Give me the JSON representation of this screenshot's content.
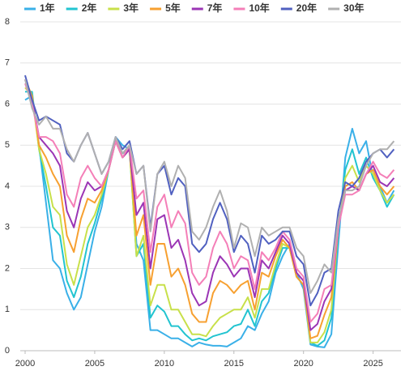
{
  "chart_data": {
    "type": "line",
    "x": [
      2000,
      2000.5,
      2001,
      2001.5,
      2002,
      2002.5,
      2003,
      2003.5,
      2004,
      2004.5,
      2005,
      2005.5,
      2006,
      2006.5,
      2007,
      2007.5,
      2008,
      2008.5,
      2009,
      2009.5,
      2010,
      2010.5,
      2011,
      2011.5,
      2012,
      2012.5,
      2013,
      2013.5,
      2014,
      2014.5,
      2015,
      2015.5,
      2016,
      2016.5,
      2017,
      2017.5,
      2018,
      2018.5,
      2019,
      2019.5,
      2020,
      2020.5,
      2021,
      2021.5,
      2022,
      2022.5,
      2023,
      2023.5,
      2024,
      2024.5,
      2025,
      2025.5,
      2026,
      2026.5
    ],
    "series": [
      {
        "name": "1年",
        "color": "#3ab0e8",
        "values": [
          6.1,
          6.2,
          5.0,
          3.6,
          2.2,
          2.0,
          1.4,
          1.0,
          1.3,
          2.1,
          2.9,
          3.5,
          4.4,
          5.2,
          5.0,
          4.9,
          2.6,
          2.2,
          0.5,
          0.5,
          0.4,
          0.3,
          0.3,
          0.2,
          0.1,
          0.2,
          0.15,
          0.12,
          0.12,
          0.1,
          0.2,
          0.3,
          0.6,
          0.5,
          0.9,
          1.2,
          1.9,
          2.3,
          2.6,
          1.9,
          1.5,
          0.15,
          0.1,
          0.08,
          0.4,
          2.6,
          4.7,
          5.4,
          4.8,
          5.1,
          4.2,
          4.0,
          3.6,
          3.9
        ]
      },
      {
        "name": "2年",
        "color": "#22c4d0",
        "values": [
          6.3,
          6.3,
          4.9,
          4.0,
          3.0,
          2.8,
          1.7,
          1.3,
          1.8,
          2.6,
          3.1,
          3.7,
          4.4,
          5.1,
          4.8,
          4.9,
          2.3,
          2.6,
          0.8,
          1.1,
          0.95,
          0.6,
          0.6,
          0.4,
          0.25,
          0.3,
          0.25,
          0.35,
          0.4,
          0.45,
          0.6,
          0.65,
          1.0,
          0.6,
          1.2,
          1.4,
          2.0,
          2.5,
          2.5,
          1.8,
          1.6,
          0.2,
          0.12,
          0.25,
          0.8,
          2.9,
          4.4,
          4.9,
          4.3,
          4.7,
          4.2,
          3.9,
          3.5,
          3.8
        ]
      },
      {
        "name": "3年",
        "color": "#c8e04a",
        "values": [
          6.4,
          6.2,
          4.9,
          4.3,
          3.5,
          3.3,
          2.1,
          1.6,
          2.3,
          3.0,
          3.3,
          3.8,
          4.4,
          5.1,
          4.7,
          4.9,
          2.3,
          2.8,
          1.1,
          1.6,
          1.6,
          1.0,
          1.0,
          0.7,
          0.4,
          0.4,
          0.35,
          0.6,
          0.8,
          0.9,
          1.0,
          1.0,
          1.3,
          0.8,
          1.5,
          1.5,
          2.1,
          2.6,
          2.5,
          1.8,
          1.6,
          0.2,
          0.2,
          0.45,
          1.0,
          3.0,
          4.2,
          4.5,
          4.1,
          4.5,
          4.3,
          3.9,
          3.6,
          3.8
        ]
      },
      {
        "name": "5年",
        "color": "#f7a030",
        "values": [
          6.6,
          6.2,
          5.0,
          4.7,
          4.3,
          4.0,
          2.8,
          2.4,
          3.2,
          3.7,
          3.6,
          3.9,
          4.4,
          5.1,
          4.7,
          4.9,
          2.8,
          3.3,
          1.6,
          2.6,
          2.6,
          1.8,
          2.0,
          1.6,
          0.9,
          0.7,
          0.7,
          1.4,
          1.7,
          1.6,
          1.4,
          1.6,
          1.7,
          1.0,
          1.9,
          1.8,
          2.3,
          2.7,
          2.5,
          1.8,
          1.6,
          0.3,
          0.36,
          0.87,
          1.3,
          3.0,
          4.0,
          4.1,
          3.9,
          4.3,
          4.4,
          4.0,
          3.8,
          4.0
        ]
      },
      {
        "name": "7年",
        "color": "#9b35b5",
        "values": [
          6.6,
          6.1,
          5.2,
          5.0,
          4.8,
          4.5,
          3.4,
          3.0,
          3.7,
          4.1,
          3.9,
          4.0,
          4.4,
          5.1,
          4.7,
          4.9,
          3.3,
          3.6,
          2.0,
          3.2,
          3.3,
          2.5,
          2.7,
          2.2,
          1.4,
          1.1,
          1.2,
          1.9,
          2.3,
          2.1,
          1.8,
          2.0,
          2.0,
          1.3,
          2.2,
          2.0,
          2.4,
          2.8,
          2.6,
          1.9,
          1.7,
          0.5,
          0.65,
          1.2,
          1.5,
          3.0,
          3.9,
          4.0,
          3.9,
          4.3,
          4.5,
          4.1,
          4.0,
          4.2
        ]
      },
      {
        "name": "10年",
        "color": "#f47fb8",
        "values": [
          6.5,
          6.0,
          5.2,
          5.2,
          5.1,
          4.8,
          3.8,
          3.5,
          4.2,
          4.5,
          4.2,
          4.0,
          4.4,
          5.1,
          4.7,
          5.0,
          3.7,
          3.9,
          2.4,
          3.5,
          3.8,
          3.0,
          3.4,
          3.1,
          1.9,
          1.6,
          1.8,
          2.5,
          2.9,
          2.6,
          2.0,
          2.3,
          2.2,
          1.5,
          2.4,
          2.2,
          2.5,
          2.9,
          2.7,
          2.0,
          1.8,
          0.7,
          0.9,
          1.5,
          1.6,
          3.0,
          3.8,
          3.8,
          3.9,
          4.3,
          4.6,
          4.3,
          4.2,
          4.4
        ]
      },
      {
        "name": "20年",
        "color": "#5060c0",
        "values": [
          6.7,
          6.1,
          5.6,
          5.7,
          5.6,
          5.5,
          4.8,
          4.6,
          5.0,
          5.3,
          4.8,
          4.3,
          4.6,
          5.2,
          4.9,
          5.1,
          4.3,
          4.5,
          3.0,
          4.3,
          4.5,
          3.8,
          4.2,
          4.0,
          2.6,
          2.4,
          2.6,
          3.2,
          3.6,
          3.2,
          2.4,
          2.8,
          2.6,
          1.9,
          2.8,
          2.6,
          2.7,
          2.9,
          2.9,
          2.3,
          2.1,
          1.1,
          1.4,
          1.9,
          2.0,
          3.4,
          4.1,
          4.0,
          4.2,
          4.6,
          4.8,
          4.9,
          4.7,
          4.9
        ]
      },
      {
        "name": "30年",
        "color": "#b0b0b0",
        "values": [
          6.6,
          5.9,
          5.5,
          5.7,
          5.4,
          5.4,
          4.9,
          4.6,
          5.0,
          5.3,
          4.8,
          4.3,
          4.6,
          5.2,
          4.8,
          5.0,
          4.3,
          4.5,
          2.9,
          4.3,
          4.6,
          4.0,
          4.5,
          4.2,
          2.9,
          2.7,
          3.0,
          3.5,
          3.9,
          3.4,
          2.5,
          3.1,
          3.0,
          2.3,
          3.0,
          2.8,
          2.9,
          3.0,
          3.0,
          2.5,
          2.3,
          1.4,
          1.7,
          2.1,
          1.9,
          3.2,
          3.9,
          3.9,
          4.0,
          4.5,
          4.8,
          4.9,
          4.9,
          5.1
        ]
      }
    ],
    "xlim": [
      1999.65,
      2027
    ],
    "xticks": [
      2000,
      2005,
      2010,
      2015,
      2020,
      2025
    ],
    "ylim": [
      0,
      8
    ],
    "yticks": [
      0,
      1,
      2,
      3,
      4,
      5,
      6,
      7,
      8
    ],
    "grid": true
  }
}
